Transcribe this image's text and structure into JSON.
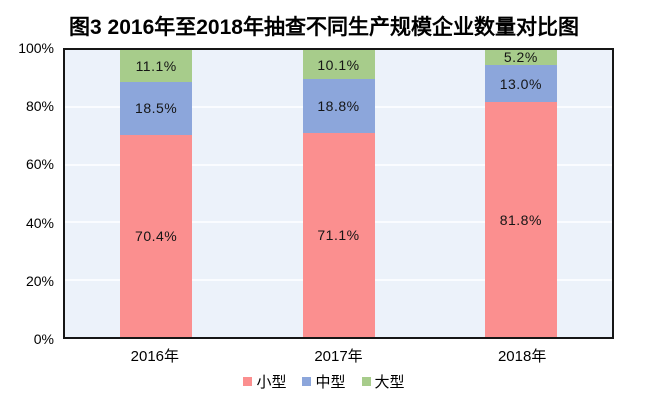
{
  "chart_data": {
    "type": "bar",
    "subtype": "stacked-100-percent",
    "title": "图3 2016年至2018年抽查不同生产规模企业数量对比图",
    "categories": [
      "2016年",
      "2017年",
      "2018年"
    ],
    "series": [
      {
        "name": "小型",
        "slug": "small",
        "color": "#FB8F8F",
        "values": [
          70.4,
          71.1,
          81.8
        ],
        "labels": [
          "70.4%",
          "71.1%",
          "81.8%"
        ]
      },
      {
        "name": "中型",
        "slug": "medium",
        "color": "#8CA6DB",
        "values": [
          18.5,
          18.8,
          13.0
        ],
        "labels": [
          "18.5%",
          "18.8%",
          "13.0%"
        ]
      },
      {
        "name": "大型",
        "slug": "large",
        "color": "#A7CC8B",
        "values": [
          11.1,
          10.1,
          5.2
        ],
        "labels": [
          "11.1%",
          "10.1%",
          "5.2%"
        ]
      }
    ],
    "y_ticks": [
      "0%",
      "20%",
      "40%",
      "60%",
      "80%",
      "100%"
    ],
    "ylim": [
      0,
      100
    ],
    "grid": true,
    "gridline_color": "#FAFCFF",
    "plot_background": "#ECF2FA",
    "legend_position": "bottom"
  }
}
